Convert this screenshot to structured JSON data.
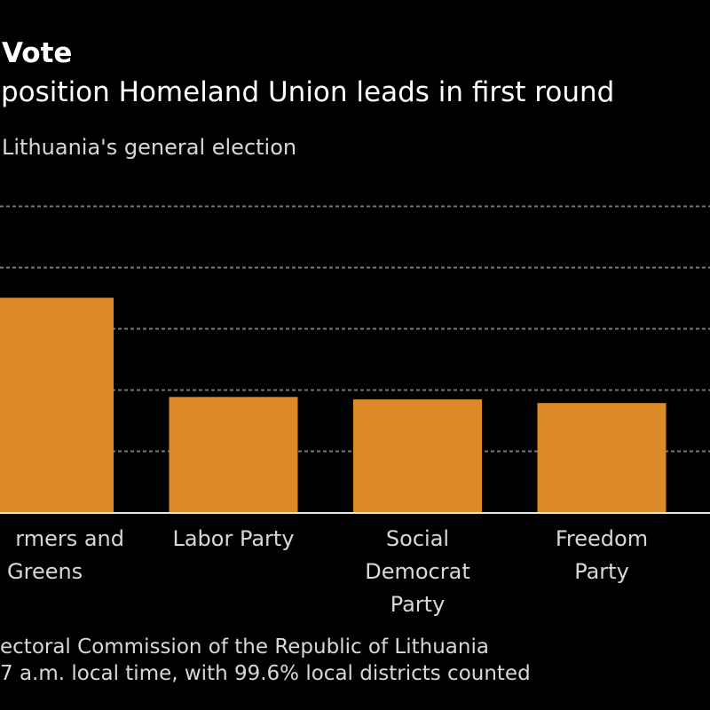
{
  "header": {
    "title": "Vote",
    "subtitle": "position Homeland Union leads in first round",
    "description": "Lithuania's general election"
  },
  "footer": {
    "source": "ectoral Commission of the Republic of Lithuania",
    "note": "7 a.m. local time, with 99.6% local districts counted"
  },
  "colors": {
    "background": "#000000",
    "bar": "#DB8A27",
    "gridline": "#777777",
    "baseline": "#e6e6e6",
    "label": "#d8d8d8"
  },
  "chart_data": {
    "type": "bar",
    "title": "Vote",
    "subtitle": "position Homeland Union leads in first round",
    "xlabel": "",
    "ylabel": "",
    "ylim": [
      0,
      25
    ],
    "gridlines": [
      5,
      10,
      15,
      20,
      25
    ],
    "grid": true,
    "categories": [
      [
        "rmers and",
        "Greens"
      ],
      [
        "Labor Party"
      ],
      [
        "Social",
        "Democrat",
        "Party"
      ],
      [
        "Freedom",
        "Party"
      ]
    ],
    "category_names": [
      "Farmers and Greens",
      "Labor Party",
      "Social Democrat Party",
      "Freedom Party"
    ],
    "values": [
      17.5,
      9.4,
      9.2,
      8.9
    ]
  }
}
